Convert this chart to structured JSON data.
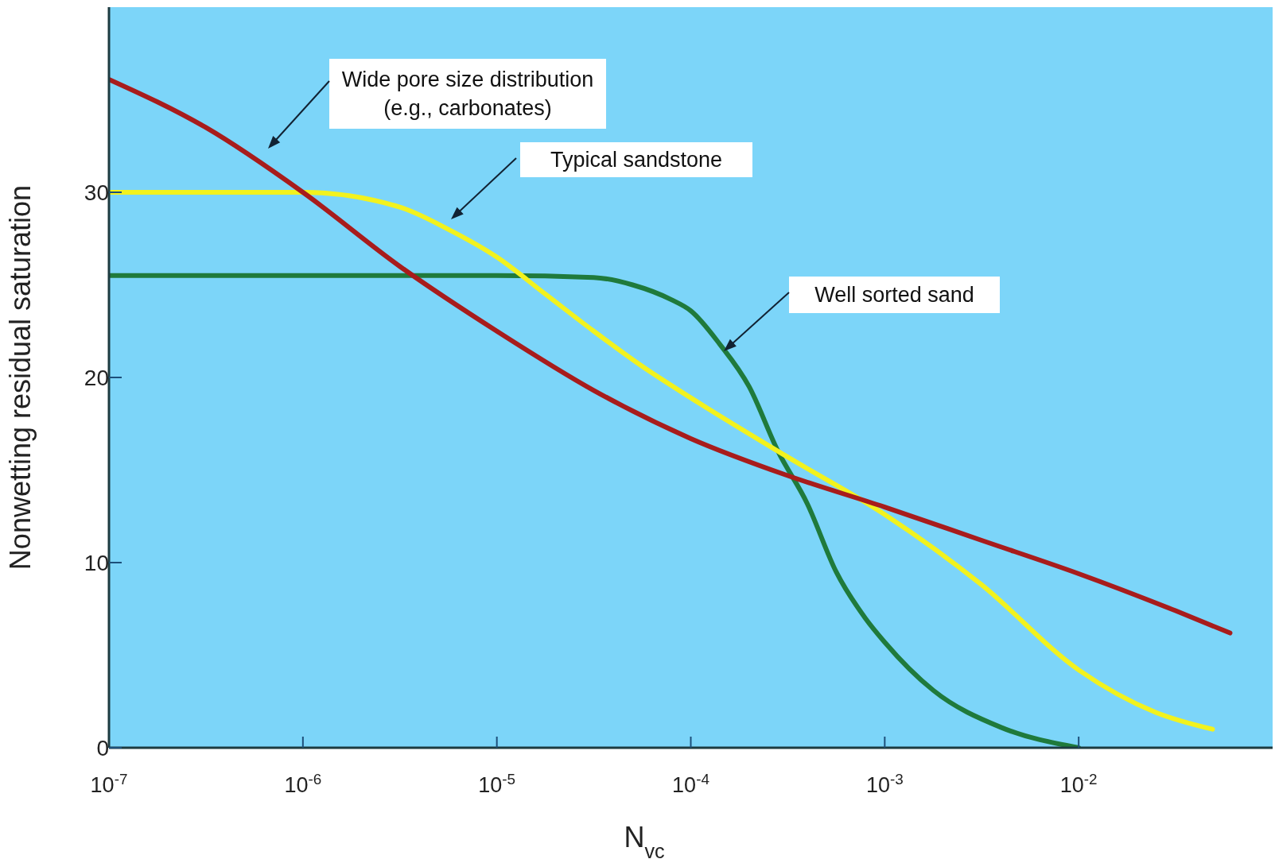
{
  "chart_data": {
    "type": "line",
    "xlabel": "N$_{vc}$",
    "ylabel": "Nonwetting residual saturation",
    "log": "x",
    "xlim": [
      1e-07,
      0.1
    ],
    "xticks": [
      {
        "value": 1e-07,
        "label": "10$^{-7}$"
      },
      {
        "value": 1e-06,
        "label": "10$^{-6}$"
      },
      {
        "value": 1e-05,
        "label": "10$^{-5}$"
      },
      {
        "value": 0.0001,
        "label": "10$^{-4}$"
      },
      {
        "value": 0.001,
        "label": "10$^{-3}$"
      },
      {
        "value": 0.01,
        "label": "10$^{-2}$"
      }
    ],
    "ylim": [
      0,
      40
    ],
    "yticks": [
      0,
      10,
      20,
      30
    ],
    "series": [
      {
        "color": "#1f7a3c",
        "x": [
          1e-07,
          1e-06,
          1e-05,
          3.16e-05,
          5.01e-05,
          7.94e-05,
          0.0001,
          0.000141,
          0.0002,
          0.000282,
          0.000398,
          0.000562,
          0.000794,
          0.001,
          0.00178,
          0.00398,
          0.01
        ],
        "values": [
          25.5,
          25.5,
          25.5,
          25.4,
          25,
          24.2,
          23.6,
          21.8,
          19.5,
          16,
          13.2,
          9.5,
          7,
          5.7,
          3.1,
          1.1,
          0
        ]
      },
      {
        "color": "#f2f21e",
        "x": [
          1e-07,
          1e-06,
          3.16e-06,
          5.62e-06,
          1e-05,
          1.78e-05,
          3.16e-05,
          5.62e-05,
          0.0001,
          0.000316,
          0.001,
          0.00316,
          0.01,
          0.0251,
          0.049
        ],
        "values": [
          30,
          30,
          29.2,
          28,
          26.5,
          24.5,
          22.5,
          20.6,
          18.9,
          15.7,
          12.6,
          8.8,
          4.2,
          1.9,
          1
        ]
      },
      {
        "color": "#a81c1c",
        "x": [
          1e-07,
          3.16e-07,
          1e-06,
          3.16e-06,
          1e-05,
          3.16e-05,
          0.0001,
          0.000316,
          0.001,
          0.00316,
          0.01,
          0.0316,
          0.0603
        ],
        "values": [
          36.1,
          33.5,
          30,
          26,
          22.5,
          19.3,
          16.7,
          14.7,
          13,
          11.2,
          9.4,
          7.4,
          6.2
        ]
      }
    ],
    "annotations": [
      "Wide pore size distribution\n(e.g., carbonates)",
      "Typical sandstone",
      "Well sorted sand"
    ]
  }
}
